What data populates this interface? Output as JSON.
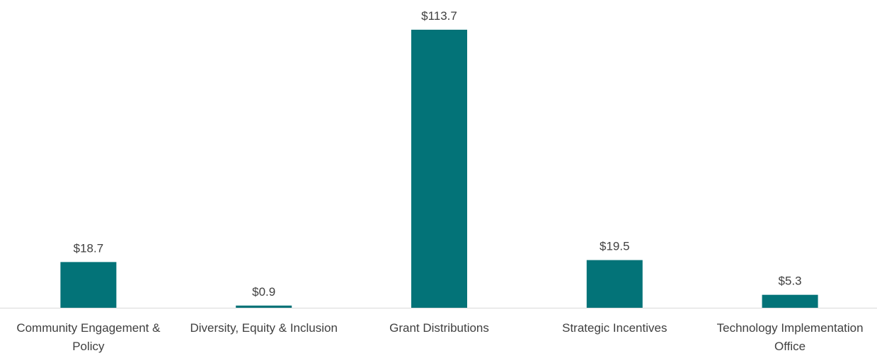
{
  "chart_data": {
    "type": "bar",
    "categories": [
      "Community Engagement & Policy",
      "Diversity, Equity & Inclusion",
      "Grant Distributions",
      "Strategic Incentives",
      "Technology Implementation Office"
    ],
    "values": [
      18.7,
      0.9,
      113.7,
      19.5,
      5.3
    ],
    "value_labels": [
      "$18.7",
      "$0.9",
      "$113.7",
      "$19.5",
      "$5.3"
    ],
    "color": "#037378"
  }
}
